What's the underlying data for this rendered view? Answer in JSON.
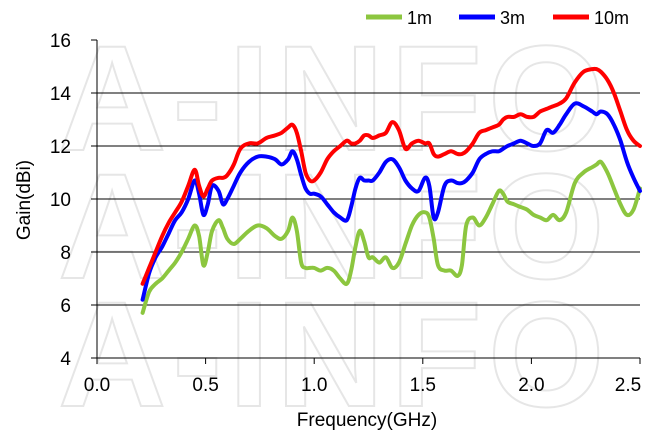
{
  "watermark": "A-INFO",
  "chart_data": {
    "type": "line",
    "xlabel": "Frequency(GHz)",
    "ylabel": "Gain(dBi)",
    "xlim": [
      0,
      2.5
    ],
    "ylim": [
      4,
      16
    ],
    "xticks": [
      "0.0",
      "0.5",
      "1.0",
      "1.5",
      "2.0",
      "2.5"
    ],
    "yticks": [
      "4",
      "6",
      "8",
      "10",
      "12",
      "14",
      "16"
    ],
    "grid": "horizontal",
    "legend_position": "top-right",
    "series": [
      {
        "name": "1m",
        "color": "#8cc63f",
        "x": [
          0.21,
          0.24,
          0.27,
          0.3,
          0.33,
          0.36,
          0.39,
          0.42,
          0.45,
          0.47,
          0.49,
          0.51,
          0.53,
          0.56,
          0.58,
          0.6,
          0.63,
          0.66,
          0.7,
          0.74,
          0.78,
          0.82,
          0.85,
          0.88,
          0.9,
          0.92,
          0.94,
          0.96,
          0.98,
          1.0,
          1.03,
          1.06,
          1.09,
          1.12,
          1.15,
          1.17,
          1.19,
          1.21,
          1.23,
          1.25,
          1.27,
          1.3,
          1.33,
          1.36,
          1.39,
          1.42,
          1.45,
          1.48,
          1.51,
          1.53,
          1.55,
          1.57,
          1.6,
          1.63,
          1.66,
          1.68,
          1.7,
          1.73,
          1.76,
          1.79,
          1.82,
          1.85,
          1.87,
          1.89,
          1.92,
          1.95,
          1.98,
          2.01,
          2.04,
          2.07,
          2.1,
          2.13,
          2.16,
          2.2,
          2.24,
          2.28,
          2.3,
          2.32,
          2.35,
          2.38,
          2.41,
          2.44,
          2.47,
          2.5
        ],
        "values": [
          5.7,
          6.5,
          6.8,
          7.0,
          7.3,
          7.6,
          8.0,
          8.5,
          9.0,
          8.6,
          7.5,
          8.0,
          8.8,
          9.2,
          8.9,
          8.5,
          8.3,
          8.5,
          8.8,
          9.0,
          8.9,
          8.6,
          8.5,
          8.8,
          9.3,
          8.8,
          7.6,
          7.4,
          7.4,
          7.4,
          7.3,
          7.4,
          7.3,
          7.0,
          6.8,
          7.3,
          8.2,
          8.8,
          8.4,
          7.8,
          7.8,
          7.6,
          7.8,
          7.4,
          7.6,
          8.3,
          9.0,
          9.4,
          9.5,
          9.3,
          8.5,
          7.5,
          7.3,
          7.3,
          7.1,
          7.5,
          9.0,
          9.3,
          9.0,
          9.3,
          9.8,
          10.3,
          10.2,
          9.9,
          9.8,
          9.7,
          9.6,
          9.4,
          9.3,
          9.2,
          9.4,
          9.2,
          9.5,
          10.6,
          11.0,
          11.2,
          11.3,
          11.4,
          11.0,
          10.4,
          9.8,
          9.4,
          9.6,
          10.4
        ]
      },
      {
        "name": "3m",
        "color": "#0000ff",
        "x": [
          0.21,
          0.24,
          0.27,
          0.3,
          0.33,
          0.36,
          0.39,
          0.42,
          0.45,
          0.47,
          0.49,
          0.51,
          0.53,
          0.56,
          0.58,
          0.6,
          0.63,
          0.66,
          0.7,
          0.74,
          0.78,
          0.82,
          0.85,
          0.88,
          0.9,
          0.92,
          0.94,
          0.96,
          0.98,
          1.0,
          1.03,
          1.06,
          1.09,
          1.12,
          1.15,
          1.17,
          1.19,
          1.21,
          1.23,
          1.25,
          1.27,
          1.3,
          1.33,
          1.36,
          1.39,
          1.42,
          1.45,
          1.48,
          1.51,
          1.53,
          1.55,
          1.57,
          1.6,
          1.63,
          1.66,
          1.68,
          1.7,
          1.73,
          1.76,
          1.79,
          1.82,
          1.85,
          1.87,
          1.89,
          1.92,
          1.95,
          1.98,
          2.01,
          2.04,
          2.07,
          2.1,
          2.13,
          2.16,
          2.2,
          2.24,
          2.28,
          2.3,
          2.32,
          2.35,
          2.38,
          2.41,
          2.44,
          2.47,
          2.5
        ],
        "values": [
          6.2,
          7.2,
          7.8,
          8.2,
          8.7,
          9.2,
          9.5,
          10.0,
          10.7,
          10.2,
          9.4,
          9.8,
          10.5,
          10.3,
          9.8,
          10.0,
          10.5,
          11.0,
          11.4,
          11.6,
          11.6,
          11.5,
          11.3,
          11.5,
          11.8,
          11.5,
          10.9,
          10.4,
          10.2,
          10.2,
          10.1,
          9.8,
          9.5,
          9.3,
          9.2,
          9.7,
          10.4,
          10.8,
          10.7,
          10.7,
          10.7,
          11.0,
          11.4,
          11.5,
          11.2,
          10.7,
          10.4,
          10.3,
          10.8,
          10.5,
          9.3,
          9.5,
          10.5,
          10.7,
          10.6,
          10.6,
          10.7,
          11.0,
          11.5,
          11.7,
          11.8,
          11.8,
          11.9,
          12.0,
          12.1,
          12.2,
          12.1,
          12.0,
          12.1,
          12.6,
          12.5,
          12.8,
          13.2,
          13.6,
          13.5,
          13.3,
          13.2,
          13.3,
          13.2,
          12.8,
          12.2,
          11.4,
          10.8,
          10.3
        ]
      },
      {
        "name": "10m",
        "color": "#ff0000",
        "x": [
          0.21,
          0.24,
          0.27,
          0.3,
          0.33,
          0.36,
          0.39,
          0.42,
          0.45,
          0.47,
          0.49,
          0.51,
          0.53,
          0.56,
          0.58,
          0.6,
          0.63,
          0.66,
          0.7,
          0.74,
          0.78,
          0.82,
          0.85,
          0.88,
          0.9,
          0.92,
          0.94,
          0.96,
          0.98,
          1.0,
          1.03,
          1.06,
          1.09,
          1.12,
          1.15,
          1.17,
          1.19,
          1.21,
          1.23,
          1.25,
          1.27,
          1.3,
          1.33,
          1.36,
          1.39,
          1.42,
          1.45,
          1.48,
          1.51,
          1.53,
          1.55,
          1.57,
          1.6,
          1.63,
          1.66,
          1.68,
          1.7,
          1.73,
          1.76,
          1.79,
          1.82,
          1.85,
          1.87,
          1.89,
          1.92,
          1.95,
          1.98,
          2.01,
          2.04,
          2.07,
          2.1,
          2.13,
          2.16,
          2.2,
          2.24,
          2.28,
          2.3,
          2.32,
          2.35,
          2.38,
          2.41,
          2.44,
          2.47,
          2.5
        ],
        "values": [
          6.8,
          7.4,
          8.0,
          8.6,
          9.1,
          9.5,
          9.9,
          10.5,
          11.1,
          10.5,
          10.1,
          10.4,
          10.7,
          10.8,
          10.8,
          10.9,
          11.3,
          11.9,
          12.1,
          12.1,
          12.3,
          12.4,
          12.5,
          12.7,
          12.8,
          12.5,
          11.8,
          11.0,
          10.7,
          10.7,
          11.0,
          11.5,
          11.8,
          12.0,
          12.2,
          12.1,
          12.1,
          12.2,
          12.4,
          12.4,
          12.3,
          12.4,
          12.5,
          12.9,
          12.6,
          11.9,
          12.1,
          12.2,
          12.1,
          12.1,
          11.7,
          11.6,
          11.7,
          11.8,
          11.7,
          11.7,
          11.8,
          12.1,
          12.5,
          12.6,
          12.7,
          12.8,
          13.0,
          13.1,
          13.1,
          13.2,
          13.1,
          13.1,
          13.3,
          13.4,
          13.5,
          13.6,
          13.8,
          14.4,
          14.8,
          14.9,
          14.9,
          14.8,
          14.5,
          14.0,
          13.3,
          12.6,
          12.2,
          12.0
        ]
      }
    ]
  }
}
